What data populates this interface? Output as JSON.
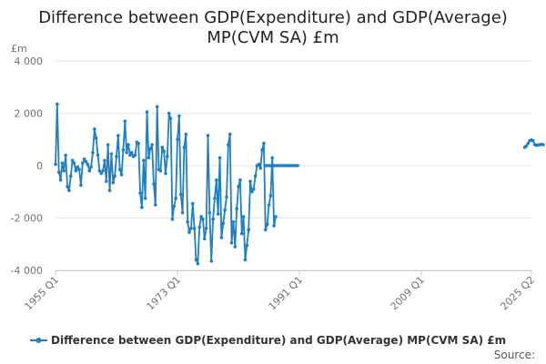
{
  "chart_data": {
    "type": "line",
    "title_lines": [
      "Difference between GDP(Expenditure) and GDP(Average)",
      "MP(CVM SA) £m"
    ],
    "ylabel": "£m",
    "ylim": [
      -4000,
      4000
    ],
    "y_ticks": [
      4000,
      2000,
      0,
      -2000,
      -4000
    ],
    "y_tick_labels": [
      "4 000",
      "2 000",
      "0",
      "-2 000",
      "-4 000"
    ],
    "x_range": [
      0,
      281
    ],
    "x_ticks": [
      0,
      72,
      144,
      216,
      281
    ],
    "x_tick_labels": [
      "1955 Q1",
      "1973 Q1",
      "1991 Q1",
      "2009 Q1",
      "2025 Q2"
    ],
    "color": "#1f7fc0",
    "series": [
      {
        "name": "Difference between GDP(Expenditure) and GDP(Average) MP(CVM SA) £m",
        "segments": [
          {
            "start": 0,
            "values": [
              50,
              2350,
              -250,
              -550,
              100,
              -200,
              400,
              -800,
              -950,
              -400,
              200,
              100,
              -200,
              -50,
              -150,
              -750,
              100,
              250,
              150,
              50,
              -200,
              -50,
              500,
              1400,
              1050,
              400,
              -200,
              -300,
              -200,
              200,
              -600,
              800,
              -950,
              450,
              -650,
              -400,
              350,
              1150,
              -150,
              -350,
              600,
              1700,
              500,
              800,
              400,
              500,
              350,
              400,
              900,
              850,
              -1050,
              -1600,
              200,
              -1250,
              2050,
              300,
              650,
              800,
              -700,
              -1500,
              2250,
              -150,
              -200,
              700,
              550,
              -300,
              350,
              2000,
              1800,
              -2050,
              -1550,
              -1250,
              1000,
              1900,
              -1100,
              -1800,
              700,
              1200,
              -2150,
              -2550,
              -2400,
              -1450,
              -2400,
              -3600,
              -3750,
              -2350,
              -1950,
              -2050,
              -2800,
              -2400,
              1150,
              -1800,
              -3650,
              -2050,
              -1250,
              -550,
              -1850,
              300,
              -2750,
              -2200,
              -1700,
              -1200,
              800,
              1200,
              -2950,
              -2150,
              -3100,
              -1650,
              -800,
              -550,
              -2600,
              -1950,
              -3600,
              -3050,
              -2450,
              -600,
              -1000,
              -900,
              -400,
              0,
              50,
              -100,
              600,
              850,
              -2450,
              -2250,
              -1500,
              -1150,
              300,
              -2300,
              -1950
            ]
          },
          {
            "start": 124,
            "values": [
              0,
              0,
              0,
              0,
              0,
              0,
              0,
              0,
              0,
              0,
              0,
              0,
              0,
              0,
              0,
              0,
              0,
              0,
              0,
              0
            ]
          },
          {
            "start": 277,
            "values": [
              700,
              750,
              850,
              950,
              980,
              950,
              800,
              780,
              790,
              800,
              810,
              800
            ]
          }
        ]
      }
    ],
    "legend": {
      "label": "Difference between GDP(Expenditure) and GDP(Average) MP(CVM SA) £m",
      "placement": "bottom"
    },
    "source_label": "Source:"
  }
}
